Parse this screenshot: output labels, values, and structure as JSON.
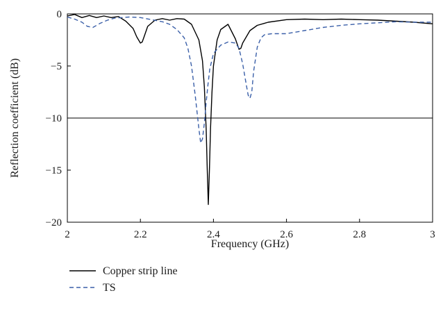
{
  "chart_data": {
    "type": "line",
    "xlabel": "Frequency (GHz)",
    "ylabel": "Reflection coefficient (dB)",
    "xlim": [
      2,
      3
    ],
    "ylim": [
      -20,
      0
    ],
    "x_ticks": [
      2,
      2.2,
      2.4,
      2.6,
      2.8,
      3
    ],
    "x_tick_labels": [
      "2",
      "2.2",
      "2.4",
      "2.6",
      "2.8",
      "3"
    ],
    "y_ticks": [
      0,
      -5,
      -10,
      -15,
      -20
    ],
    "y_tick_labels": [
      "0",
      "−5",
      "−10",
      "−15",
      "−20"
    ],
    "grid": false,
    "legend_position": "bottom-left",
    "reference_lines": [
      {
        "y": -10
      }
    ],
    "series": [
      {
        "name": "Copper strip line",
        "color": "#000000",
        "style": "solid",
        "x": [
          2.0,
          2.02,
          2.04,
          2.06,
          2.08,
          2.1,
          2.12,
          2.14,
          2.16,
          2.18,
          2.19,
          2.2,
          2.205,
          2.21,
          2.22,
          2.24,
          2.26,
          2.28,
          2.3,
          2.32,
          2.34,
          2.36,
          2.37,
          2.375,
          2.38,
          2.383,
          2.386,
          2.389,
          2.392,
          2.396,
          2.4,
          2.41,
          2.42,
          2.44,
          2.46,
          2.47,
          2.475,
          2.48,
          2.5,
          2.52,
          2.55,
          2.6,
          2.65,
          2.7,
          2.75,
          2.8,
          2.85,
          2.9,
          2.95,
          3.0
        ],
        "y": [
          -0.2,
          -0.05,
          -0.35,
          -0.15,
          -0.35,
          -0.2,
          -0.35,
          -0.25,
          -0.7,
          -1.4,
          -2.2,
          -2.8,
          -2.7,
          -2.2,
          -1.2,
          -0.6,
          -0.45,
          -0.6,
          -0.45,
          -0.5,
          -1.0,
          -2.5,
          -4.5,
          -7.0,
          -11.0,
          -15.0,
          -18.3,
          -15.0,
          -11.0,
          -7.5,
          -5.0,
          -2.5,
          -1.5,
          -1.0,
          -2.4,
          -3.4,
          -3.3,
          -2.8,
          -1.6,
          -1.1,
          -0.8,
          -0.55,
          -0.5,
          -0.55,
          -0.5,
          -0.55,
          -0.6,
          -0.7,
          -0.8,
          -0.95
        ]
      },
      {
        "name": "TS",
        "color": "#3a5fa8",
        "style": "dashed",
        "x": [
          2.0,
          2.02,
          2.04,
          2.055,
          2.07,
          2.09,
          2.11,
          2.13,
          2.15,
          2.17,
          2.2,
          2.23,
          2.26,
          2.28,
          2.3,
          2.32,
          2.33,
          2.34,
          2.35,
          2.36,
          2.365,
          2.37,
          2.375,
          2.38,
          2.385,
          2.39,
          2.4,
          2.42,
          2.44,
          2.46,
          2.47,
          2.48,
          2.49,
          2.495,
          2.5,
          2.505,
          2.51,
          2.52,
          2.53,
          2.54,
          2.56,
          2.6,
          2.65,
          2.7,
          2.75,
          2.8,
          2.85,
          2.9,
          2.95,
          3.0
        ],
        "y": [
          -0.3,
          -0.5,
          -0.8,
          -1.2,
          -1.3,
          -0.9,
          -0.6,
          -0.4,
          -0.35,
          -0.3,
          -0.35,
          -0.55,
          -0.75,
          -1.0,
          -1.5,
          -2.3,
          -3.3,
          -5.0,
          -7.8,
          -11.0,
          -12.4,
          -12.0,
          -10.5,
          -8.5,
          -6.8,
          -5.3,
          -3.8,
          -3.0,
          -2.7,
          -2.8,
          -3.3,
          -4.8,
          -6.8,
          -7.8,
          -8.1,
          -7.5,
          -5.5,
          -3.2,
          -2.3,
          -2.0,
          -1.9,
          -1.9,
          -1.6,
          -1.3,
          -1.1,
          -0.95,
          -0.85,
          -0.75,
          -0.8,
          -0.8
        ]
      }
    ]
  }
}
